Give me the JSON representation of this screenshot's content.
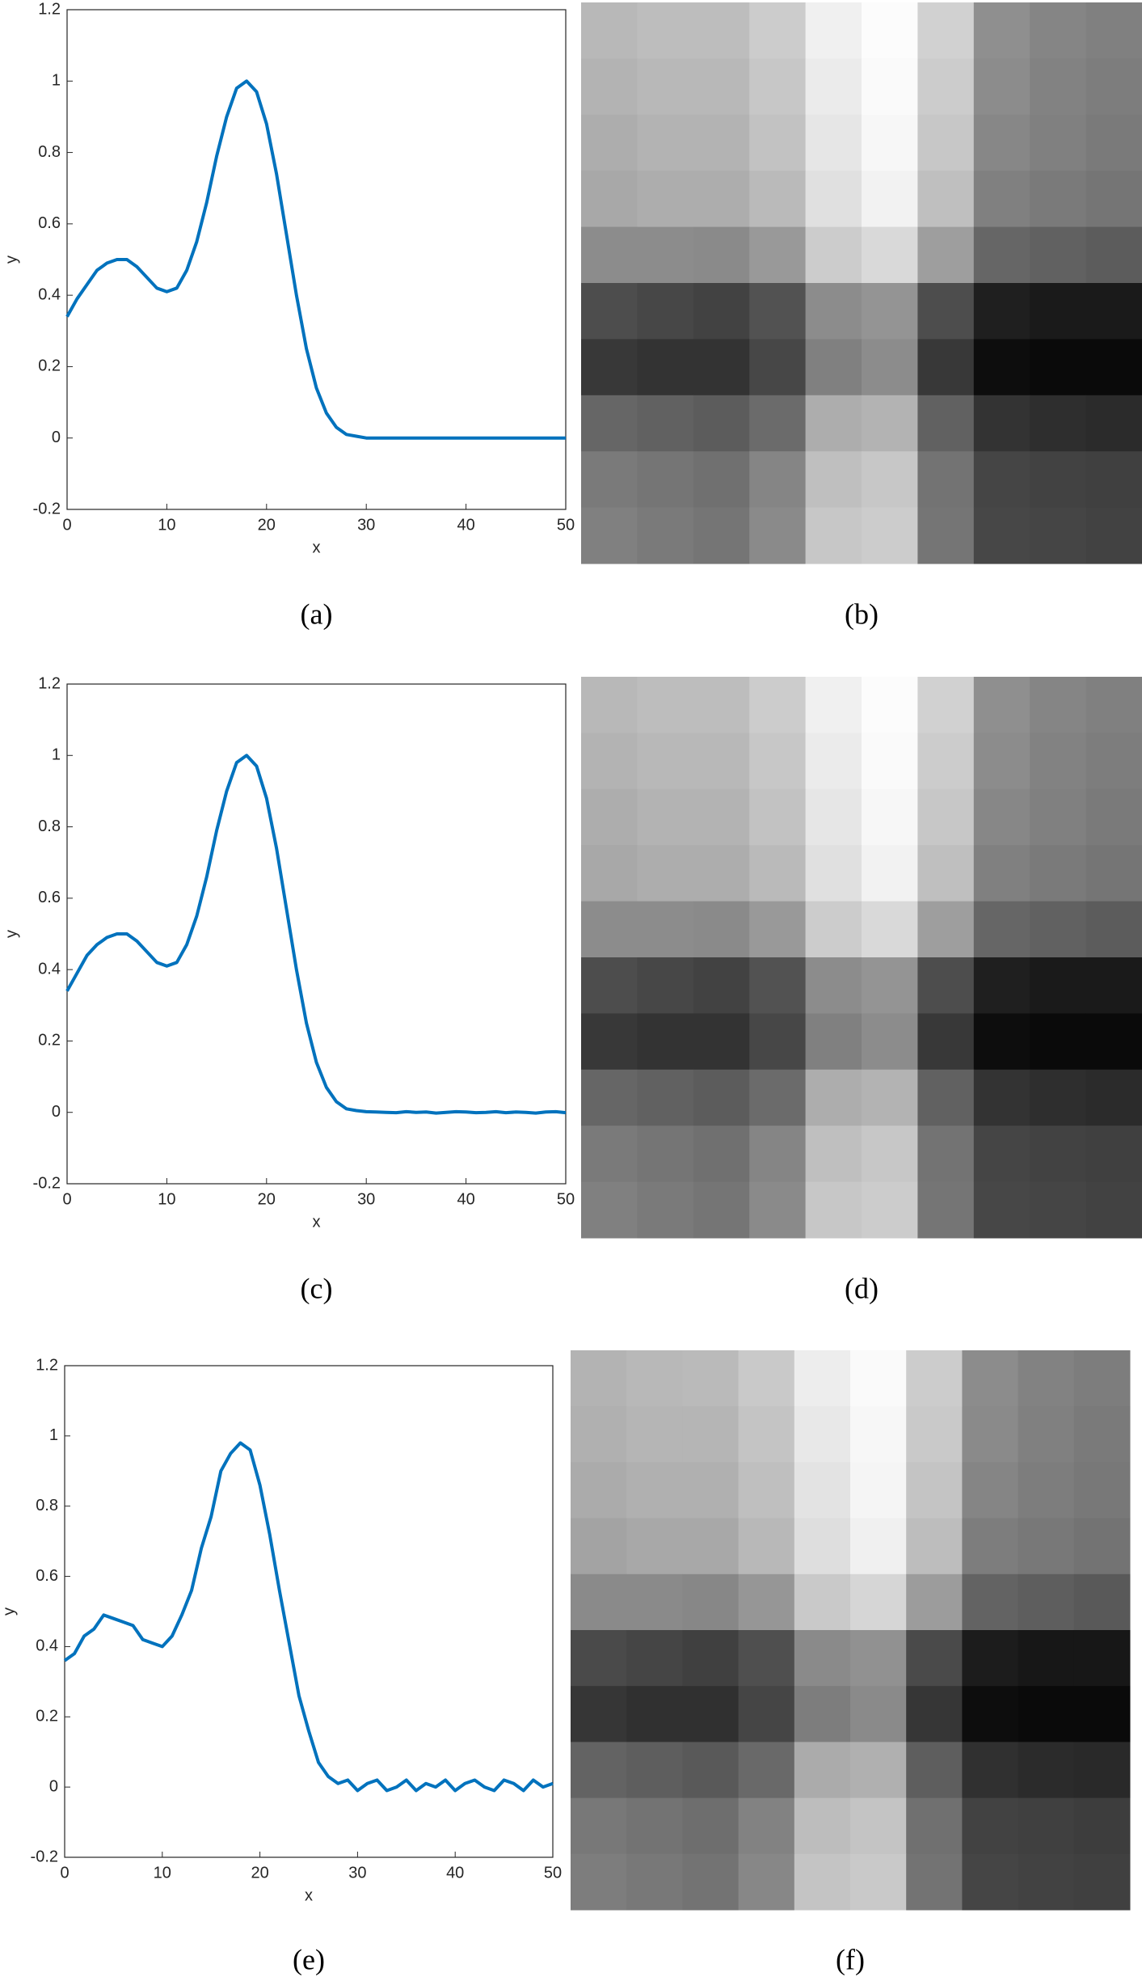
{
  "chart_data": [
    {
      "type": "line",
      "caption": "(a)",
      "xlabel": "x",
      "ylabel": "y",
      "x": [
        0,
        1,
        2,
        3,
        4,
        5,
        6,
        7,
        8,
        9,
        10,
        11,
        12,
        13,
        14,
        15,
        16,
        17,
        18,
        19,
        20,
        21,
        22,
        23,
        24,
        25,
        26,
        27,
        28,
        29,
        30,
        31,
        32,
        33,
        34,
        35,
        36,
        37,
        38,
        39,
        40,
        41,
        42,
        43,
        44,
        45,
        46,
        47,
        48,
        49,
        50
      ],
      "values": [
        0.34,
        0.39,
        0.43,
        0.47,
        0.49,
        0.5,
        0.5,
        0.48,
        0.45,
        0.42,
        0.41,
        0.42,
        0.47,
        0.55,
        0.66,
        0.79,
        0.9,
        0.98,
        1,
        0.97,
        0.88,
        0.74,
        0.57,
        0.4,
        0.25,
        0.14,
        0.07,
        0.03,
        0.01,
        0.005,
        0,
        0,
        0,
        0,
        0,
        0,
        0,
        0,
        0,
        0,
        0,
        0,
        0,
        0,
        0,
        0,
        0,
        0,
        0,
        0,
        0
      ],
      "color": "#0072bd",
      "xlim": [
        0,
        50
      ],
      "ylim": [
        -0.2,
        1.2
      ],
      "xticks": [
        0,
        10,
        20,
        30,
        40,
        50
      ],
      "yticks": [
        -0.2,
        0,
        0.2,
        0.4,
        0.6,
        0.8,
        1,
        1.2
      ]
    },
    {
      "type": "heatmap",
      "caption": "(b)",
      "values": [
        [
          0.72,
          0.74,
          0.74,
          0.8,
          0.94,
          0.99,
          0.82,
          0.56,
          0.52,
          0.5
        ],
        [
          0.7,
          0.72,
          0.72,
          0.78,
          0.92,
          0.98,
          0.8,
          0.55,
          0.51,
          0.49
        ],
        [
          0.68,
          0.7,
          0.7,
          0.76,
          0.9,
          0.97,
          0.78,
          0.53,
          0.5,
          0.48
        ],
        [
          0.66,
          0.68,
          0.68,
          0.73,
          0.88,
          0.95,
          0.75,
          0.5,
          0.48,
          0.46
        ],
        [
          0.55,
          0.55,
          0.54,
          0.6,
          0.8,
          0.85,
          0.62,
          0.4,
          0.38,
          0.36
        ],
        [
          0.3,
          0.28,
          0.26,
          0.32,
          0.55,
          0.58,
          0.3,
          0.12,
          0.1,
          0.1
        ],
        [
          0.22,
          0.2,
          0.2,
          0.28,
          0.5,
          0.55,
          0.22,
          0.05,
          0.04,
          0.04
        ],
        [
          0.4,
          0.38,
          0.36,
          0.42,
          0.68,
          0.7,
          0.38,
          0.2,
          0.18,
          0.17
        ],
        [
          0.48,
          0.46,
          0.44,
          0.52,
          0.75,
          0.78,
          0.45,
          0.27,
          0.26,
          0.25
        ],
        [
          0.5,
          0.48,
          0.46,
          0.54,
          0.78,
          0.8,
          0.46,
          0.28,
          0.27,
          0.26
        ]
      ]
    },
    {
      "type": "line",
      "caption": "(c)",
      "xlabel": "x",
      "ylabel": "y",
      "x": [
        0,
        1,
        2,
        3,
        4,
        5,
        6,
        7,
        8,
        9,
        10,
        11,
        12,
        13,
        14,
        15,
        16,
        17,
        18,
        19,
        20,
        21,
        22,
        23,
        24,
        25,
        26,
        27,
        28,
        29,
        30,
        31,
        32,
        33,
        34,
        35,
        36,
        37,
        38,
        39,
        40,
        41,
        42,
        43,
        44,
        45,
        46,
        47,
        48,
        49,
        50
      ],
      "values": [
        0.34,
        0.39,
        0.44,
        0.47,
        0.49,
        0.5,
        0.5,
        0.48,
        0.45,
        0.42,
        0.41,
        0.42,
        0.47,
        0.55,
        0.66,
        0.79,
        0.9,
        0.98,
        1,
        0.97,
        0.88,
        0.74,
        0.57,
        0.4,
        0.25,
        0.14,
        0.07,
        0.03,
        0.01,
        0.005,
        0.002,
        0.001,
        0,
        -0.001,
        0.002,
        0,
        0.001,
        -0.002,
        0,
        0.002,
        0.001,
        -0.001,
        0,
        0.002,
        -0.001,
        0.001,
        0,
        -0.002,
        0.001,
        0.002,
        -0.001
      ],
      "color": "#0072bd",
      "xlim": [
        0,
        50
      ],
      "ylim": [
        -0.2,
        1.2
      ],
      "xticks": [
        0,
        10,
        20,
        30,
        40,
        50
      ],
      "yticks": [
        -0.2,
        0,
        0.2,
        0.4,
        0.6,
        0.8,
        1,
        1.2
      ]
    },
    {
      "type": "heatmap",
      "caption": "(d)",
      "values": [
        [
          0.72,
          0.74,
          0.74,
          0.8,
          0.94,
          0.99,
          0.82,
          0.56,
          0.52,
          0.5
        ],
        [
          0.7,
          0.72,
          0.72,
          0.78,
          0.92,
          0.98,
          0.8,
          0.55,
          0.51,
          0.49
        ],
        [
          0.68,
          0.7,
          0.7,
          0.76,
          0.9,
          0.97,
          0.78,
          0.53,
          0.5,
          0.48
        ],
        [
          0.66,
          0.68,
          0.68,
          0.73,
          0.88,
          0.95,
          0.75,
          0.5,
          0.48,
          0.46
        ],
        [
          0.55,
          0.55,
          0.54,
          0.6,
          0.8,
          0.85,
          0.62,
          0.4,
          0.38,
          0.36
        ],
        [
          0.3,
          0.28,
          0.26,
          0.32,
          0.55,
          0.58,
          0.3,
          0.12,
          0.1,
          0.1
        ],
        [
          0.22,
          0.2,
          0.2,
          0.28,
          0.5,
          0.55,
          0.22,
          0.05,
          0.04,
          0.04
        ],
        [
          0.4,
          0.38,
          0.36,
          0.42,
          0.68,
          0.7,
          0.38,
          0.2,
          0.18,
          0.17
        ],
        [
          0.48,
          0.46,
          0.44,
          0.52,
          0.75,
          0.78,
          0.45,
          0.27,
          0.26,
          0.25
        ],
        [
          0.5,
          0.48,
          0.46,
          0.54,
          0.78,
          0.8,
          0.46,
          0.28,
          0.27,
          0.26
        ]
      ]
    },
    {
      "type": "line",
      "caption": "(e)",
      "xlabel": "x",
      "ylabel": "y",
      "x": [
        0,
        1,
        2,
        3,
        4,
        5,
        6,
        7,
        8,
        9,
        10,
        11,
        12,
        13,
        14,
        15,
        16,
        17,
        18,
        19,
        20,
        21,
        22,
        23,
        24,
        25,
        26,
        27,
        28,
        29,
        30,
        31,
        32,
        33,
        34,
        35,
        36,
        37,
        38,
        39,
        40,
        41,
        42,
        43,
        44,
        45,
        46,
        47,
        48,
        49,
        50
      ],
      "values": [
        0.36,
        0.38,
        0.43,
        0.45,
        0.49,
        0.48,
        0.47,
        0.46,
        0.42,
        0.41,
        0.4,
        0.43,
        0.49,
        0.56,
        0.68,
        0.77,
        0.9,
        0.95,
        0.98,
        0.96,
        0.86,
        0.72,
        0.56,
        0.41,
        0.26,
        0.16,
        0.07,
        0.03,
        0.01,
        0.02,
        -0.01,
        0.01,
        0.02,
        -0.01,
        0,
        0.02,
        -0.01,
        0.01,
        0,
        0.02,
        -0.01,
        0.01,
        0.02,
        0,
        -0.01,
        0.02,
        0.01,
        -0.01,
        0.02,
        0,
        0.01
      ],
      "color": "#0072bd",
      "xlim": [
        0,
        50
      ],
      "ylim": [
        -0.2,
        1.2
      ],
      "xticks": [
        0,
        10,
        20,
        30,
        40,
        50
      ],
      "yticks": [
        -0.2,
        0,
        0.2,
        0.4,
        0.6,
        0.8,
        1,
        1.2
      ]
    },
    {
      "type": "heatmap",
      "caption": "(f)",
      "values": [
        [
          0.7,
          0.72,
          0.73,
          0.79,
          0.93,
          0.98,
          0.8,
          0.55,
          0.51,
          0.49
        ],
        [
          0.69,
          0.71,
          0.71,
          0.77,
          0.91,
          0.97,
          0.79,
          0.54,
          0.5,
          0.48
        ],
        [
          0.67,
          0.69,
          0.69,
          0.75,
          0.89,
          0.96,
          0.77,
          0.52,
          0.49,
          0.47
        ],
        [
          0.64,
          0.66,
          0.66,
          0.72,
          0.87,
          0.94,
          0.74,
          0.49,
          0.47,
          0.45
        ],
        [
          0.54,
          0.54,
          0.53,
          0.59,
          0.79,
          0.84,
          0.61,
          0.39,
          0.37,
          0.35
        ],
        [
          0.29,
          0.27,
          0.25,
          0.31,
          0.54,
          0.57,
          0.29,
          0.11,
          0.09,
          0.09
        ],
        [
          0.21,
          0.19,
          0.19,
          0.27,
          0.49,
          0.54,
          0.21,
          0.05,
          0.04,
          0.04
        ],
        [
          0.39,
          0.37,
          0.35,
          0.41,
          0.67,
          0.69,
          0.37,
          0.19,
          0.17,
          0.16
        ],
        [
          0.47,
          0.45,
          0.43,
          0.51,
          0.74,
          0.77,
          0.44,
          0.26,
          0.25,
          0.24
        ],
        [
          0.49,
          0.47,
          0.45,
          0.53,
          0.77,
          0.79,
          0.45,
          0.27,
          0.26,
          0.25
        ]
      ]
    }
  ]
}
